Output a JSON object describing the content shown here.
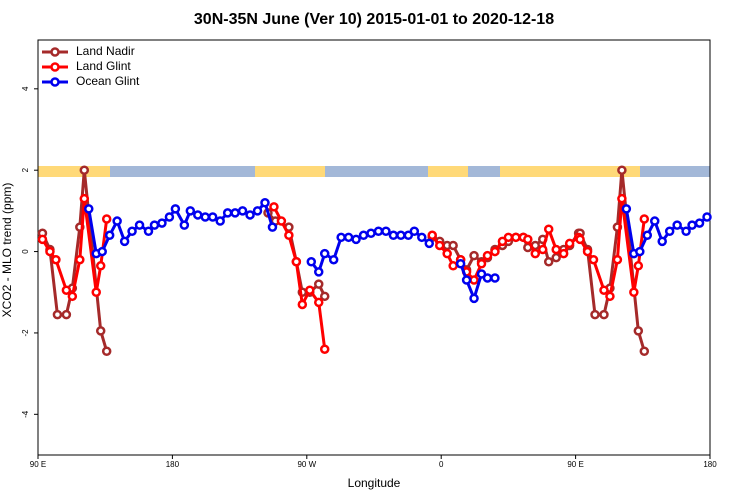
{
  "chart_data": {
    "type": "line",
    "title": "30N-35N June (Ver 10)   2015-01-01 to 2020-12-18",
    "x_label": "Longitude",
    "y_label": "XCO2 - MLO trend (ppm)",
    "xlim": [
      90,
      540
    ],
    "xticks": [
      {
        "value": 90,
        "label": "90 E"
      },
      180,
      {
        "value": 270,
        "label": "90 W"
      },
      {
        "value": 360,
        "label": "0"
      },
      {
        "value": 450,
        "label": "90 E"
      },
      {
        "value": 540,
        "label": "180"
      }
    ],
    "ylim": [
      -5,
      5.2
    ],
    "yticks": [
      -4,
      -2,
      0,
      2,
      4
    ],
    "legend": "upper left",
    "series": [
      {
        "name": "Land Nadir",
        "color": "#a52a2a",
        "x": [
          93,
          98,
          103,
          109,
          113,
          118,
          121,
          132,
          136,
          null,
          244,
          249,
          258,
          263,
          267,
          272,
          278,
          282,
          null,
          354,
          359,
          364,
          368,
          373,
          377,
          382,
          387,
          391,
          396,
          401,
          405,
          410,
          415,
          418,
          423,
          428,
          432,
          437,
          442,
          446,
          452,
          453,
          458,
          463,
          469,
          473,
          478,
          481,
          492,
          496
        ],
        "values": [
          0.45,
          0.05,
          -1.55,
          -1.55,
          -0.9,
          0.6,
          2.0,
          -1.95,
          -2.45,
          null,
          0.95,
          0.75,
          0.6,
          -0.25,
          -1.0,
          -1.0,
          -0.8,
          -1.1,
          null,
          0.35,
          0.25,
          0.15,
          0.15,
          -0.2,
          -0.45,
          -0.1,
          -0.25,
          -0.15,
          0.05,
          0.15,
          0.25,
          0.35,
          0.35,
          0.1,
          0.15,
          0.3,
          -0.25,
          -0.15,
          0.05,
          0.15,
          0.45,
          0.45,
          0.05,
          -1.55,
          -1.55,
          -0.9,
          0.6,
          2.0,
          -1.95,
          -2.45
        ]
      },
      {
        "name": "Land Glint",
        "color": "#ff0000",
        "x": [
          93,
          98,
          102,
          109,
          113,
          118,
          121,
          129,
          132,
          136,
          null,
          248,
          253,
          258,
          263,
          267,
          272,
          278,
          282,
          null,
          354,
          359,
          364,
          368,
          373,
          377,
          382,
          387,
          391,
          396,
          401,
          405,
          410,
          415,
          418,
          423,
          428,
          432,
          437,
          442,
          446,
          452,
          453,
          458,
          462,
          469,
          473,
          478,
          481,
          489,
          492,
          496
        ],
        "values": [
          0.3,
          0,
          -0.2,
          -0.95,
          -1.1,
          -0.2,
          1.3,
          -1.0,
          -0.35,
          0.8,
          null,
          1.1,
          0.75,
          0.4,
          -0.25,
          -1.3,
          -0.95,
          -1.25,
          -2.4,
          null,
          0.4,
          0.15,
          -0.05,
          -0.35,
          -0.2,
          -0.5,
          -0.7,
          -0.3,
          -0.1,
          0,
          0.25,
          0.35,
          0.35,
          0.35,
          0.3,
          -0.05,
          0.05,
          0.55,
          0.05,
          -0.05,
          0.2,
          0.35,
          0.3,
          0,
          -0.2,
          -0.95,
          -1.1,
          -0.2,
          1.3,
          -1.0,
          -0.35,
          0.8
        ]
      },
      {
        "name": "Ocean Glint",
        "color": "#0000ee",
        "x": [
          124,
          129,
          133,
          138,
          143,
          148,
          153,
          158,
          164,
          168,
          173,
          178,
          182,
          188,
          192,
          197,
          202,
          207,
          212,
          217,
          222,
          227,
          232,
          237,
          242,
          247,
          null,
          273,
          278,
          282,
          288,
          293,
          298,
          303,
          308,
          313,
          318,
          323,
          328,
          333,
          338,
          342,
          347,
          352,
          null,
          373,
          377,
          382,
          387,
          391,
          396,
          null,
          484,
          489,
          493,
          498,
          503,
          508,
          513,
          518,
          524,
          528,
          533,
          538
        ],
        "values": [
          1.05,
          -0.05,
          0,
          0.4,
          0.75,
          0.25,
          0.5,
          0.65,
          0.5,
          0.65,
          0.7,
          0.85,
          1.05,
          0.65,
          1.0,
          0.9,
          0.85,
          0.85,
          0.75,
          0.95,
          0.95,
          1.0,
          0.9,
          1.0,
          1.2,
          0.6,
          null,
          -0.25,
          -0.5,
          -0.05,
          -0.2,
          0.35,
          0.35,
          0.3,
          0.4,
          0.45,
          0.5,
          0.5,
          0.4,
          0.4,
          0.4,
          0.5,
          0.35,
          0.2,
          null,
          -0.3,
          -0.7,
          -1.15,
          -0.55,
          -0.65,
          -0.65,
          null,
          1.05,
          -0.05,
          0,
          0.4,
          0.75,
          0.25,
          0.5,
          0.65,
          0.5,
          0.65,
          0.7,
          0.85
        ]
      }
    ]
  }
}
